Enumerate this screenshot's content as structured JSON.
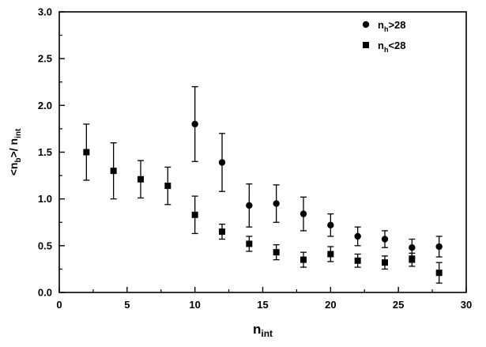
{
  "chart_data": {
    "type": "scatter",
    "title": "",
    "xlabel": "n_int",
    "ylabel": "<n_b>/ n_int",
    "xlabel_parts": [
      {
        "t": "n"
      },
      {
        "t": "int",
        "sub": true
      }
    ],
    "ylabel_parts": [
      {
        "t": "<n"
      },
      {
        "t": "b",
        "sub": true
      },
      {
        "t": ">/ n"
      },
      {
        "t": "int",
        "sub": true
      }
    ],
    "xlim": [
      0,
      30
    ],
    "ylim": [
      0.0,
      3.0
    ],
    "xtick_values": [
      0,
      5,
      10,
      15,
      20,
      25,
      30
    ],
    "xtick_labels": [
      "0",
      "5",
      "10",
      "15",
      "20",
      "25",
      "30"
    ],
    "ytick_values": [
      0.0,
      0.5,
      1.0,
      1.5,
      2.0,
      2.5,
      3.0
    ],
    "ytick_labels": [
      "0.0",
      "0.5",
      "1.0",
      "1.5",
      "2.0",
      "2.5",
      "3.0"
    ],
    "x_minor_step": 2.5,
    "y_minor_step": 0.25,
    "grid": false,
    "legend_position": "top-right",
    "marker_color": "#000000",
    "axis_color": "#000000",
    "legend": [
      {
        "marker": "circle",
        "label": "n_h>28",
        "label_parts": [
          {
            "t": "n"
          },
          {
            "t": "h",
            "sub": true
          },
          {
            "t": ">28"
          }
        ]
      },
      {
        "marker": "square",
        "label": "n_h<28",
        "label_parts": [
          {
            "t": "n"
          },
          {
            "t": "h",
            "sub": true
          },
          {
            "t": "<28"
          }
        ]
      }
    ],
    "series": [
      {
        "name": "n_h>28",
        "marker": "circle",
        "color": "#000000",
        "points": [
          {
            "x": 10,
            "y": 1.8,
            "err": 0.4
          },
          {
            "x": 12,
            "y": 1.39,
            "err": 0.31
          },
          {
            "x": 14,
            "y": 0.93,
            "err": 0.23
          },
          {
            "x": 16,
            "y": 0.95,
            "err": 0.2
          },
          {
            "x": 18,
            "y": 0.84,
            "err": 0.18
          },
          {
            "x": 20,
            "y": 0.72,
            "err": 0.12
          },
          {
            "x": 22,
            "y": 0.6,
            "err": 0.1
          },
          {
            "x": 24,
            "y": 0.57,
            "err": 0.09
          },
          {
            "x": 26,
            "y": 0.48,
            "err": 0.09
          },
          {
            "x": 28,
            "y": 0.49,
            "err": 0.11
          }
        ]
      },
      {
        "name": "n_h<28",
        "marker": "square",
        "color": "#000000",
        "points": [
          {
            "x": 2,
            "y": 1.5,
            "err": 0.3
          },
          {
            "x": 4,
            "y": 1.3,
            "err": 0.3
          },
          {
            "x": 6,
            "y": 1.21,
            "err": 0.2
          },
          {
            "x": 8,
            "y": 1.14,
            "err": 0.2
          },
          {
            "x": 10,
            "y": 0.83,
            "err": 0.2
          },
          {
            "x": 12,
            "y": 0.65,
            "err": 0.08
          },
          {
            "x": 14,
            "y": 0.52,
            "err": 0.08
          },
          {
            "x": 16,
            "y": 0.43,
            "err": 0.08
          },
          {
            "x": 18,
            "y": 0.35,
            "err": 0.08
          },
          {
            "x": 20,
            "y": 0.41,
            "err": 0.08
          },
          {
            "x": 22,
            "y": 0.34,
            "err": 0.07
          },
          {
            "x": 24,
            "y": 0.32,
            "err": 0.07
          },
          {
            "x": 26,
            "y": 0.35,
            "err": 0.07
          },
          {
            "x": 28,
            "y": 0.21,
            "err": 0.11
          }
        ]
      }
    ]
  }
}
